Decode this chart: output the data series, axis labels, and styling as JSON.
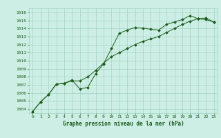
{
  "title": "Graphe pression niveau de la mer (hPa)",
  "background_color": "#cceee4",
  "grid_color": "#99ccbb",
  "line_color": "#1a5c1a",
  "ylim": [
    1003.5,
    1016.5
  ],
  "xlim": [
    -0.5,
    23.5
  ],
  "yticks": [
    1004,
    1005,
    1006,
    1007,
    1008,
    1009,
    1010,
    1011,
    1012,
    1013,
    1014,
    1015,
    1016
  ],
  "xticks": [
    0,
    1,
    2,
    3,
    4,
    5,
    6,
    7,
    8,
    9,
    10,
    11,
    12,
    13,
    14,
    15,
    16,
    17,
    18,
    19,
    20,
    21,
    22,
    23
  ],
  "series1_x": [
    0,
    1,
    2,
    3,
    4,
    5,
    6,
    7,
    8,
    9,
    10,
    11,
    12,
    13,
    14,
    15,
    16,
    17,
    18,
    19,
    20,
    21,
    22,
    23
  ],
  "series1_y": [
    1003.7,
    1004.9,
    1005.8,
    1007.1,
    1007.2,
    1007.6,
    1006.5,
    1006.7,
    1008.4,
    1009.6,
    1011.5,
    1013.4,
    1013.8,
    1014.1,
    1014.05,
    1013.9,
    1013.8,
    1014.5,
    1014.8,
    1015.1,
    1015.6,
    1015.2,
    1015.1,
    1014.8
  ],
  "series2_x": [
    0,
    1,
    2,
    3,
    4,
    5,
    6,
    7,
    8,
    9,
    10,
    11,
    12,
    13,
    14,
    15,
    16,
    17,
    18,
    19,
    20,
    21,
    22,
    23
  ],
  "series2_y": [
    1003.7,
    1004.9,
    1005.8,
    1007.1,
    1007.2,
    1007.5,
    1007.5,
    1008.0,
    1008.8,
    1009.7,
    1010.5,
    1011.0,
    1011.5,
    1012.0,
    1012.4,
    1012.7,
    1013.0,
    1013.5,
    1014.0,
    1014.5,
    1014.9,
    1015.2,
    1015.3,
    1014.8
  ],
  "tick_fontsize": 4.5,
  "title_fontsize": 5.5
}
